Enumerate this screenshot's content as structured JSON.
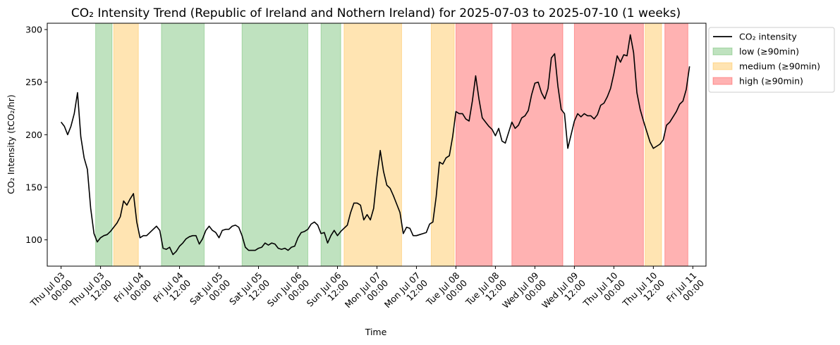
{
  "chart_data": {
    "type": "line",
    "title": "CO₂ Intensity Trend (Republic of Ireland and Nothern Ireland) for 2025-07-03 to 2025-07-10 (1 weeks)",
    "xlabel": "Time",
    "ylabel": "CO₂ Intensity (tCO₂/hr)",
    "xlim": [
      "2025-07-02 19:48",
      "2025-07-11 04:00"
    ],
    "ylim": [
      75,
      306
    ],
    "yticks": [
      100,
      150,
      200,
      250,
      300
    ],
    "xticks": [
      {
        "x": "2025-07-03 00:00",
        "line1": "Thu Jul 03",
        "line2": "00:00"
      },
      {
        "x": "2025-07-03 12:00",
        "line1": "Thu Jul 03",
        "line2": "12:00"
      },
      {
        "x": "2025-07-04 00:00",
        "line1": "Fri Jul 04",
        "line2": "00:00"
      },
      {
        "x": "2025-07-04 12:00",
        "line1": "Fri Jul 04",
        "line2": "12:00"
      },
      {
        "x": "2025-07-05 00:00",
        "line1": "Sat Jul 05",
        "line2": "00:00"
      },
      {
        "x": "2025-07-05 12:00",
        "line1": "Sat Jul 05",
        "line2": "12:00"
      },
      {
        "x": "2025-07-06 00:00",
        "line1": "Sun Jul 06",
        "line2": "00:00"
      },
      {
        "x": "2025-07-06 12:00",
        "line1": "Sun Jul 06",
        "line2": "12:00"
      },
      {
        "x": "2025-07-07 00:00",
        "line1": "Mon Jul 07",
        "line2": "00:00"
      },
      {
        "x": "2025-07-07 12:00",
        "line1": "Mon Jul 07",
        "line2": "12:00"
      },
      {
        "x": "2025-07-08 00:00",
        "line1": "Tue Jul 08",
        "line2": "00:00"
      },
      {
        "x": "2025-07-08 12:00",
        "line1": "Tue Jul 08",
        "line2": "12:00"
      },
      {
        "x": "2025-07-09 00:00",
        "line1": "Wed Jul 09",
        "line2": "00:00"
      },
      {
        "x": "2025-07-09 12:00",
        "line1": "Wed Jul 09",
        "line2": "12:00"
      },
      {
        "x": "2025-07-10 00:00",
        "line1": "Thu Jul 10",
        "line2": "00:00"
      },
      {
        "x": "2025-07-10 12:00",
        "line1": "Thu Jul 10",
        "line2": "12:00"
      },
      {
        "x": "2025-07-11 00:00",
        "line1": "Fri Jul 11",
        "line2": "00:00"
      }
    ],
    "grid": false,
    "legend_position": "outside top-right",
    "series": [
      {
        "name": "CO₂ intensity",
        "color": "#000000",
        "points": [
          [
            "2025-07-03 00:00",
            212
          ],
          [
            "2025-07-03 01:00",
            208
          ],
          [
            "2025-07-03 02:00",
            200
          ],
          [
            "2025-07-03 03:00",
            208
          ],
          [
            "2025-07-03 04:00",
            220
          ],
          [
            "2025-07-03 05:00",
            240
          ],
          [
            "2025-07-03 06:00",
            198
          ],
          [
            "2025-07-03 07:00",
            178
          ],
          [
            "2025-07-03 08:00",
            167
          ],
          [
            "2025-07-03 09:00",
            130
          ],
          [
            "2025-07-03 10:00",
            106
          ],
          [
            "2025-07-03 11:00",
            98
          ],
          [
            "2025-07-03 12:00",
            102
          ],
          [
            "2025-07-03 13:00",
            104
          ],
          [
            "2025-07-03 14:00",
            105
          ],
          [
            "2025-07-03 15:00",
            108
          ],
          [
            "2025-07-03 16:00",
            112
          ],
          [
            "2025-07-03 17:00",
            116
          ],
          [
            "2025-07-03 18:00",
            122
          ],
          [
            "2025-07-03 19:00",
            137
          ],
          [
            "2025-07-03 20:00",
            133
          ],
          [
            "2025-07-03 21:00",
            139
          ],
          [
            "2025-07-03 22:00",
            144
          ],
          [
            "2025-07-03 23:00",
            117
          ],
          [
            "2025-07-04 00:00",
            102
          ],
          [
            "2025-07-04 01:00",
            104
          ],
          [
            "2025-07-04 02:00",
            104
          ],
          [
            "2025-07-04 03:00",
            107
          ],
          [
            "2025-07-04 04:00",
            110
          ],
          [
            "2025-07-04 05:00",
            113
          ],
          [
            "2025-07-04 06:00",
            109
          ],
          [
            "2025-07-04 07:00",
            92
          ],
          [
            "2025-07-04 08:00",
            91
          ],
          [
            "2025-07-04 09:00",
            93
          ],
          [
            "2025-07-04 10:00",
            86
          ],
          [
            "2025-07-04 11:00",
            89
          ],
          [
            "2025-07-04 12:00",
            94
          ],
          [
            "2025-07-04 13:00",
            97
          ],
          [
            "2025-07-04 14:00",
            101
          ],
          [
            "2025-07-04 15:00",
            103
          ],
          [
            "2025-07-04 16:00",
            104
          ],
          [
            "2025-07-04 17:00",
            104
          ],
          [
            "2025-07-04 18:00",
            96
          ],
          [
            "2025-07-04 19:00",
            101
          ],
          [
            "2025-07-04 20:00",
            109
          ],
          [
            "2025-07-04 21:00",
            113
          ],
          [
            "2025-07-04 22:00",
            109
          ],
          [
            "2025-07-04 23:00",
            107
          ],
          [
            "2025-07-05 00:00",
            102
          ],
          [
            "2025-07-05 01:00",
            109
          ],
          [
            "2025-07-05 02:00",
            110
          ],
          [
            "2025-07-05 03:00",
            110
          ],
          [
            "2025-07-05 04:00",
            113
          ],
          [
            "2025-07-05 05:00",
            114
          ],
          [
            "2025-07-05 06:00",
            112
          ],
          [
            "2025-07-05 07:00",
            104
          ],
          [
            "2025-07-05 08:00",
            93
          ],
          [
            "2025-07-05 09:00",
            90
          ],
          [
            "2025-07-05 10:00",
            90
          ],
          [
            "2025-07-05 11:00",
            90
          ],
          [
            "2025-07-05 12:00",
            92
          ],
          [
            "2025-07-05 13:00",
            93
          ],
          [
            "2025-07-05 14:00",
            97
          ],
          [
            "2025-07-05 15:00",
            95
          ],
          [
            "2025-07-05 16:00",
            97
          ],
          [
            "2025-07-05 17:00",
            96
          ],
          [
            "2025-07-05 18:00",
            92
          ],
          [
            "2025-07-05 19:00",
            91
          ],
          [
            "2025-07-05 20:00",
            92
          ],
          [
            "2025-07-05 21:00",
            90
          ],
          [
            "2025-07-05 22:00",
            93
          ],
          [
            "2025-07-05 23:00",
            94
          ],
          [
            "2025-07-06 00:00",
            102
          ],
          [
            "2025-07-06 01:00",
            107
          ],
          [
            "2025-07-06 02:00",
            108
          ],
          [
            "2025-07-06 03:00",
            110
          ],
          [
            "2025-07-06 04:00",
            115
          ],
          [
            "2025-07-06 05:00",
            117
          ],
          [
            "2025-07-06 06:00",
            114
          ],
          [
            "2025-07-06 07:00",
            106
          ],
          [
            "2025-07-06 08:00",
            107
          ],
          [
            "2025-07-06 09:00",
            97
          ],
          [
            "2025-07-06 10:00",
            104
          ],
          [
            "2025-07-06 11:00",
            109
          ],
          [
            "2025-07-06 12:00",
            104
          ],
          [
            "2025-07-06 13:00",
            108
          ],
          [
            "2025-07-06 14:00",
            111
          ],
          [
            "2025-07-06 15:00",
            114
          ],
          [
            "2025-07-06 16:00",
            126
          ],
          [
            "2025-07-06 17:00",
            135
          ],
          [
            "2025-07-06 18:00",
            135
          ],
          [
            "2025-07-06 19:00",
            133
          ],
          [
            "2025-07-06 20:00",
            119
          ],
          [
            "2025-07-06 21:00",
            124
          ],
          [
            "2025-07-06 22:00",
            119
          ],
          [
            "2025-07-06 23:00",
            130
          ],
          [
            "2025-07-07 00:00",
            160
          ],
          [
            "2025-07-07 01:00",
            185
          ],
          [
            "2025-07-07 02:00",
            165
          ],
          [
            "2025-07-07 03:00",
            152
          ],
          [
            "2025-07-07 04:00",
            149
          ],
          [
            "2025-07-07 05:00",
            142
          ],
          [
            "2025-07-07 06:00",
            134
          ],
          [
            "2025-07-07 07:00",
            126
          ],
          [
            "2025-07-07 08:00",
            106
          ],
          [
            "2025-07-07 09:00",
            112
          ],
          [
            "2025-07-07 10:00",
            111
          ],
          [
            "2025-07-07 11:00",
            104
          ],
          [
            "2025-07-07 12:00",
            104
          ],
          [
            "2025-07-07 13:00",
            105
          ],
          [
            "2025-07-07 14:00",
            106
          ],
          [
            "2025-07-07 15:00",
            107
          ],
          [
            "2025-07-07 16:00",
            115
          ],
          [
            "2025-07-07 17:00",
            117
          ],
          [
            "2025-07-07 18:00",
            141
          ],
          [
            "2025-07-07 19:00",
            174
          ],
          [
            "2025-07-07 20:00",
            172
          ],
          [
            "2025-07-07 21:00",
            178
          ],
          [
            "2025-07-07 22:00",
            180
          ],
          [
            "2025-07-07 23:00",
            198
          ],
          [
            "2025-07-08 00:00",
            222
          ],
          [
            "2025-07-08 01:00",
            220
          ],
          [
            "2025-07-08 02:00",
            220
          ],
          [
            "2025-07-08 03:00",
            215
          ],
          [
            "2025-07-08 04:00",
            213
          ],
          [
            "2025-07-08 05:00",
            232
          ],
          [
            "2025-07-08 06:00",
            256
          ],
          [
            "2025-07-08 07:00",
            234
          ],
          [
            "2025-07-08 08:00",
            216
          ],
          [
            "2025-07-08 09:00",
            212
          ],
          [
            "2025-07-08 10:00",
            208
          ],
          [
            "2025-07-08 11:00",
            205
          ],
          [
            "2025-07-08 12:00",
            199
          ],
          [
            "2025-07-08 13:00",
            206
          ],
          [
            "2025-07-08 14:00",
            194
          ],
          [
            "2025-07-08 15:00",
            192
          ],
          [
            "2025-07-08 16:00",
            202
          ],
          [
            "2025-07-08 17:00",
            212
          ],
          [
            "2025-07-08 18:00",
            206
          ],
          [
            "2025-07-08 19:00",
            209
          ],
          [
            "2025-07-08 20:00",
            216
          ],
          [
            "2025-07-08 21:00",
            218
          ],
          [
            "2025-07-08 22:00",
            223
          ],
          [
            "2025-07-08 23:00",
            238
          ],
          [
            "2025-07-09 00:00",
            249
          ],
          [
            "2025-07-09 01:00",
            250
          ],
          [
            "2025-07-09 02:00",
            240
          ],
          [
            "2025-07-09 03:00",
            234
          ],
          [
            "2025-07-09 04:00",
            244
          ],
          [
            "2025-07-09 05:00",
            273
          ],
          [
            "2025-07-09 06:00",
            277
          ],
          [
            "2025-07-09 07:00",
            246
          ],
          [
            "2025-07-09 08:00",
            224
          ],
          [
            "2025-07-09 09:00",
            220
          ],
          [
            "2025-07-09 10:00",
            187
          ],
          [
            "2025-07-09 11:00",
            200
          ],
          [
            "2025-07-09 12:00",
            213
          ],
          [
            "2025-07-09 13:00",
            220
          ],
          [
            "2025-07-09 14:00",
            217
          ],
          [
            "2025-07-09 15:00",
            220
          ],
          [
            "2025-07-09 16:00",
            218
          ],
          [
            "2025-07-09 17:00",
            218
          ],
          [
            "2025-07-09 18:00",
            215
          ],
          [
            "2025-07-09 19:00",
            219
          ],
          [
            "2025-07-09 20:00",
            228
          ],
          [
            "2025-07-09 21:00",
            230
          ],
          [
            "2025-07-09 22:00",
            236
          ],
          [
            "2025-07-09 23:00",
            244
          ],
          [
            "2025-07-10 00:00",
            258
          ],
          [
            "2025-07-10 01:00",
            275
          ],
          [
            "2025-07-10 02:00",
            269
          ],
          [
            "2025-07-10 03:00",
            276
          ],
          [
            "2025-07-10 04:00",
            275
          ],
          [
            "2025-07-10 05:00",
            295
          ],
          [
            "2025-07-10 06:00",
            278
          ],
          [
            "2025-07-10 07:00",
            240
          ],
          [
            "2025-07-10 08:00",
            224
          ],
          [
            "2025-07-10 09:00",
            213
          ],
          [
            "2025-07-10 10:00",
            203
          ],
          [
            "2025-07-10 11:00",
            193
          ],
          [
            "2025-07-10 12:00",
            187
          ],
          [
            "2025-07-10 13:00",
            189
          ],
          [
            "2025-07-10 14:00",
            191
          ],
          [
            "2025-07-10 15:00",
            195
          ],
          [
            "2025-07-10 16:00",
            209
          ],
          [
            "2025-07-10 17:00",
            212
          ],
          [
            "2025-07-10 18:00",
            217
          ],
          [
            "2025-07-10 19:00",
            222
          ],
          [
            "2025-07-10 20:00",
            229
          ],
          [
            "2025-07-10 21:00",
            232
          ],
          [
            "2025-07-10 22:00",
            243
          ],
          [
            "2025-07-10 23:00",
            265
          ]
        ]
      }
    ],
    "band_categories": [
      {
        "key": "low",
        "name": "low (≥90min)",
        "color": "#2ca02c"
      },
      {
        "key": "medium",
        "name": "medium (≥90min)",
        "color": "#ffa500"
      },
      {
        "key": "high",
        "name": "high (≥90min)",
        "color": "#ff0000"
      }
    ],
    "bands": [
      {
        "category": "low",
        "start": "2025-07-03 10:30",
        "end": "2025-07-03 15:30"
      },
      {
        "category": "medium",
        "start": "2025-07-03 16:00",
        "end": "2025-07-03 23:30"
      },
      {
        "category": "low",
        "start": "2025-07-04 06:30",
        "end": "2025-07-04 19:30"
      },
      {
        "category": "low",
        "start": "2025-07-05 07:00",
        "end": "2025-07-06 03:00"
      },
      {
        "category": "low",
        "start": "2025-07-06 07:00",
        "end": "2025-07-06 13:00"
      },
      {
        "category": "medium",
        "start": "2025-07-06 14:00",
        "end": "2025-07-07 07:30"
      },
      {
        "category": "medium",
        "start": "2025-07-07 16:30",
        "end": "2025-07-07 23:30"
      },
      {
        "category": "high",
        "start": "2025-07-08 00:00",
        "end": "2025-07-08 11:00"
      },
      {
        "category": "high",
        "start": "2025-07-08 17:00",
        "end": "2025-07-09 08:30"
      },
      {
        "category": "high",
        "start": "2025-07-09 12:00",
        "end": "2025-07-10 09:00"
      },
      {
        "category": "medium",
        "start": "2025-07-10 09:30",
        "end": "2025-07-10 14:30"
      },
      {
        "category": "high",
        "start": "2025-07-10 15:30",
        "end": "2025-07-10 22:30"
      }
    ]
  }
}
